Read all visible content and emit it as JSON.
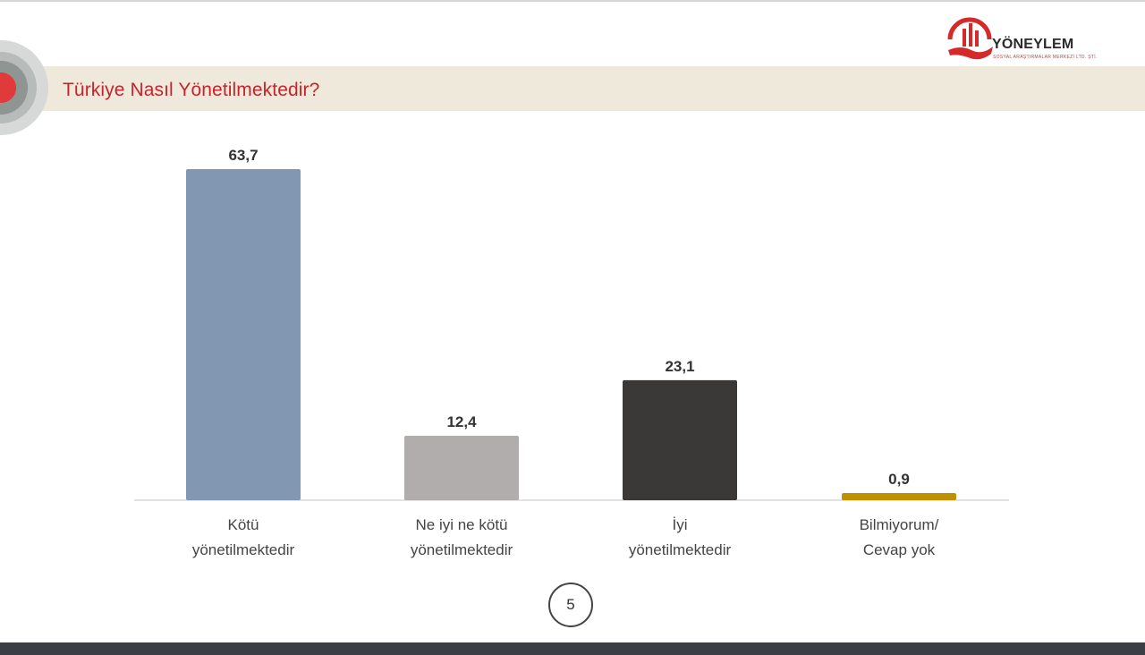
{
  "header": {
    "title": "Türkiye Nasıl Yönetilmektedir?",
    "logo_text": "YÖNEYLEM",
    "logo_subtext": "SOSYAL ARAŞTIRMALAR MERKEZİ LTD. ŞTİ.",
    "logo_icon": "building-hand-logo-icon"
  },
  "colors": {
    "title": "#c8232c",
    "band": "#efe9dc",
    "bar_1": "#8197b2",
    "bar_2": "#b1adad",
    "bar_3": "#3b3838",
    "bar_4": "#bf9000"
  },
  "chart_data": {
    "type": "bar",
    "title": "Türkiye Nasıl Yönetilmektedir?",
    "categories": [
      [
        "Kötü",
        "yönetilmektedir"
      ],
      [
        "Ne iyi ne kötü",
        "yönetilmektedir"
      ],
      [
        "İyi",
        "yönetilmektedir"
      ],
      [
        "Bilmiyorum/",
        "Cevap yok"
      ]
    ],
    "values": [
      63.7,
      12.4,
      23.1,
      0.9
    ],
    "value_labels": [
      "63,7",
      "12,4",
      "23,1",
      "0,9"
    ],
    "xlabel": "",
    "ylabel": "",
    "ylim": [
      0,
      63.7
    ],
    "grid": false,
    "legend": "none"
  },
  "footer": {
    "page_number": "5"
  }
}
